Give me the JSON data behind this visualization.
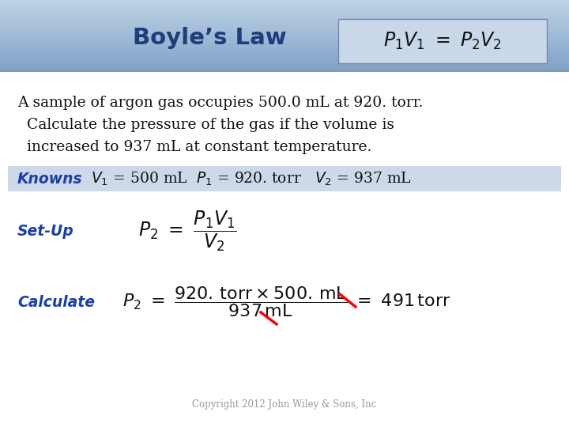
{
  "title": "Boyle’s Law",
  "title_color": "#1f3d7a",
  "body_text_line1": "A sample of argon gas occupies 500.0 mL at 920. torr.",
  "body_text_line2": "  Calculate the pressure of the gas if the volume is",
  "body_text_line3": "  increased to 937 mL at constant temperature.",
  "knowns_label": "Knowns",
  "setup_label": "Set-Up",
  "calculate_label": "Calculate",
  "label_color": "#1a3faa",
  "body_color": "#111111",
  "copyright": "Copyright 2012 John Wiley & Sons, Inc",
  "copyright_color": "#999999",
  "knowns_bg": "#cdd9e8",
  "formula_box_bg": "#c8d8e8",
  "header_color_top": "#7fa8c8",
  "header_color_bottom": "#b8cfe0",
  "divider_color": "#8899aa",
  "body_bg": "#f0f4f8"
}
